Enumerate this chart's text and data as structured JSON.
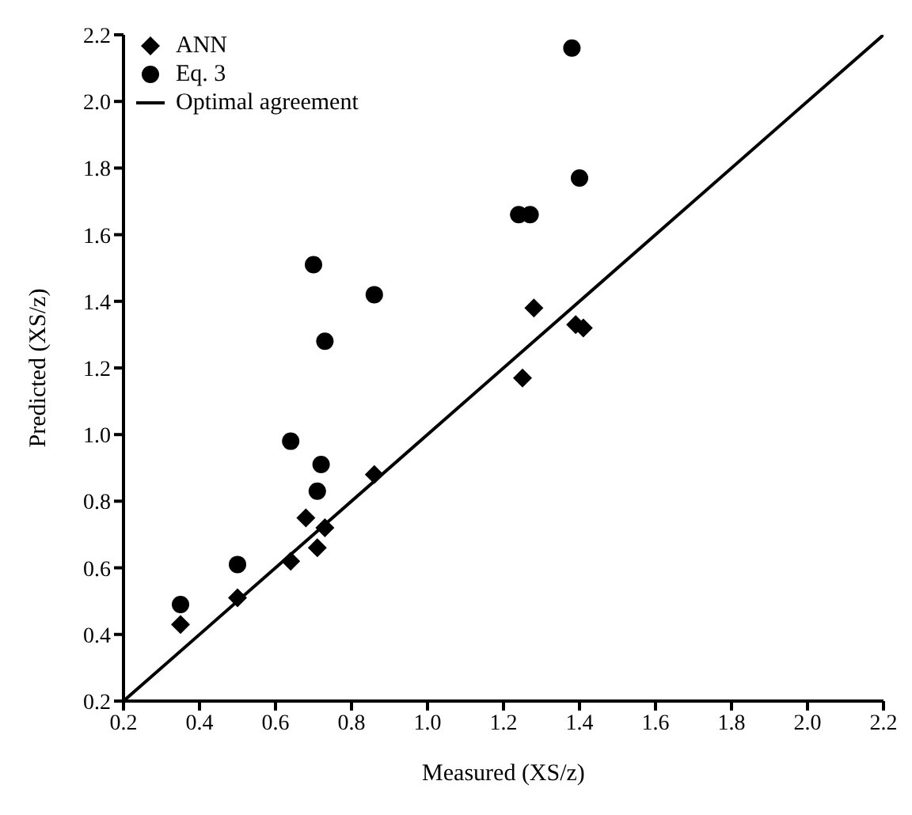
{
  "chart_data": {
    "type": "scatter",
    "xlabel": "Measured (XS/z)",
    "ylabel": "Predicted (XS/z)",
    "xlim": [
      0.2,
      2.2
    ],
    "ylim": [
      0.2,
      2.2
    ],
    "xticks": [
      0.2,
      0.4,
      0.6,
      0.8,
      {
        "value": 1,
        "label": "1.0"
      },
      1.2,
      1.4,
      1.6,
      1.8,
      {
        "value": 2,
        "label": "2.0"
      },
      2.2
    ],
    "yticks": [
      0.2,
      0.4,
      0.6,
      0.8,
      {
        "value": 1,
        "label": "1.0"
      },
      1.2,
      1.4,
      1.6,
      1.8,
      {
        "value": 2,
        "label": "2.0"
      },
      2.2
    ],
    "grid": false,
    "legend": "top left",
    "series": [
      {
        "name": "ANN",
        "marker": "diamond",
        "color": "#000000",
        "x": [
          0.35,
          0.5,
          0.64,
          0.68,
          0.71,
          0.73,
          0.86,
          1.25,
          1.28,
          1.39,
          1.41
        ],
        "values": [
          0.43,
          0.51,
          0.62,
          0.75,
          0.66,
          0.72,
          0.88,
          1.17,
          1.38,
          1.33,
          1.32
        ]
      },
      {
        "name": "Eq. 3",
        "marker": "circle",
        "color": "#000000",
        "x": [
          0.35,
          0.5,
          0.64,
          0.7,
          0.71,
          0.72,
          0.73,
          0.86,
          1.24,
          1.27,
          1.38,
          1.4
        ],
        "values": [
          0.49,
          0.61,
          0.98,
          1.51,
          0.83,
          0.91,
          1.28,
          1.42,
          1.66,
          1.66,
          2.16,
          1.77
        ]
      },
      {
        "name": "Optimal agreement",
        "type": "line",
        "marker": "none",
        "line_style": "solid",
        "color": "#000000",
        "x": [
          0.2,
          2.2
        ],
        "values": [
          0.2,
          2.2
        ]
      }
    ]
  }
}
